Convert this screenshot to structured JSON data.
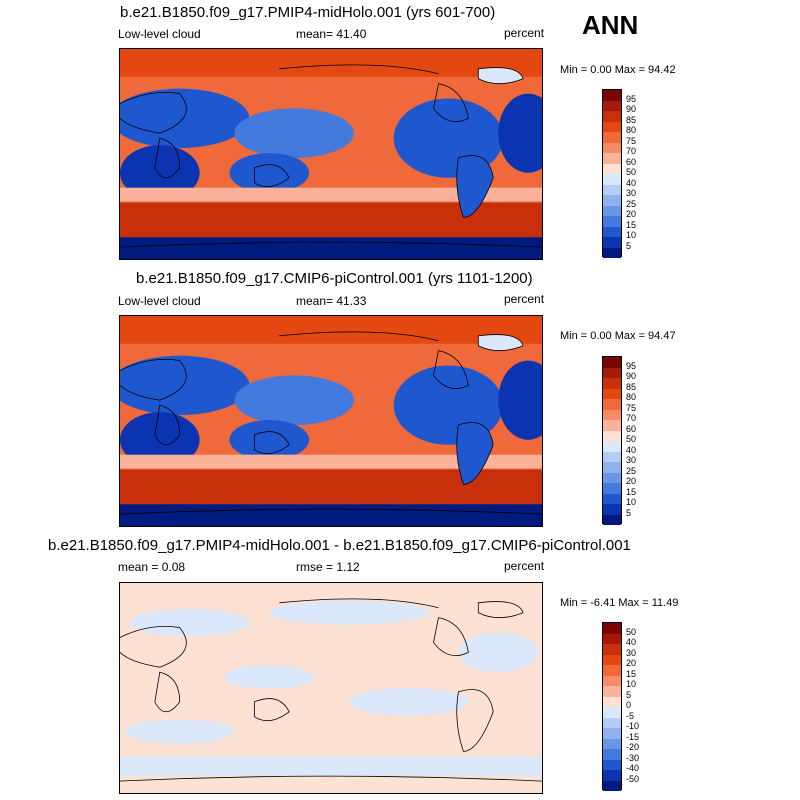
{
  "season": "ANN",
  "panels": [
    {
      "title": "b.e21.B1850.f09_g17.PMIP4-midHolo.001 (yrs 601-700)",
      "left_label": "Low-level cloud",
      "center_label": "mean=  41.40",
      "units": "percent",
      "minmax": "Min =  0.00 Max =  94.42"
    },
    {
      "title": "b.e21.B1850.f09_g17.CMIP6-piControl.001 (yrs 1101-1200)",
      "left_label": "Low-level cloud",
      "center_label": "mean=  41.33",
      "units": "percent",
      "minmax": "Min =  0.00 Max =  94.47"
    },
    {
      "title": "b.e21.B1850.f09_g17.PMIP4-midHolo.001 - b.e21.B1850.f09_g17.CMIP6-piControl.001",
      "left_label": "mean =   0.08",
      "center_label": "rmse =   1.12",
      "units": "percent",
      "minmax": "Min =  -6.41 Max =  11.49"
    }
  ],
  "abs_colorbar": {
    "labels": [
      "95",
      "90",
      "85",
      "80",
      "75",
      "70",
      "60",
      "50",
      "40",
      "30",
      "25",
      "20",
      "15",
      "10",
      "5"
    ],
    "colors": [
      "#7a0403",
      "#a51a08",
      "#c8300b",
      "#e2480f",
      "#f0693a",
      "#f68c66",
      "#fab29a",
      "#fde2d4",
      "#dbe8fb",
      "#b5cdf5",
      "#8fb2ef",
      "#6a96e7",
      "#4479dd",
      "#1f57cf",
      "#0a34b0",
      "#001a80"
    ]
  },
  "diff_colorbar": {
    "labels": [
      "50",
      "40",
      "30",
      "20",
      "15",
      "10",
      "5",
      "0",
      "-5",
      "-10",
      "-15",
      "-20",
      "-30",
      "-40",
      "-50"
    ],
    "colors": [
      "#7a0403",
      "#a51a08",
      "#c8300b",
      "#e2480f",
      "#f0693a",
      "#f68c66",
      "#fab29a",
      "#fde2d4",
      "#dbe8fb",
      "#b5cdf5",
      "#8fb2ef",
      "#6a96e7",
      "#4479dd",
      "#1f57cf",
      "#0a34b0",
      "#001a80"
    ]
  }
}
